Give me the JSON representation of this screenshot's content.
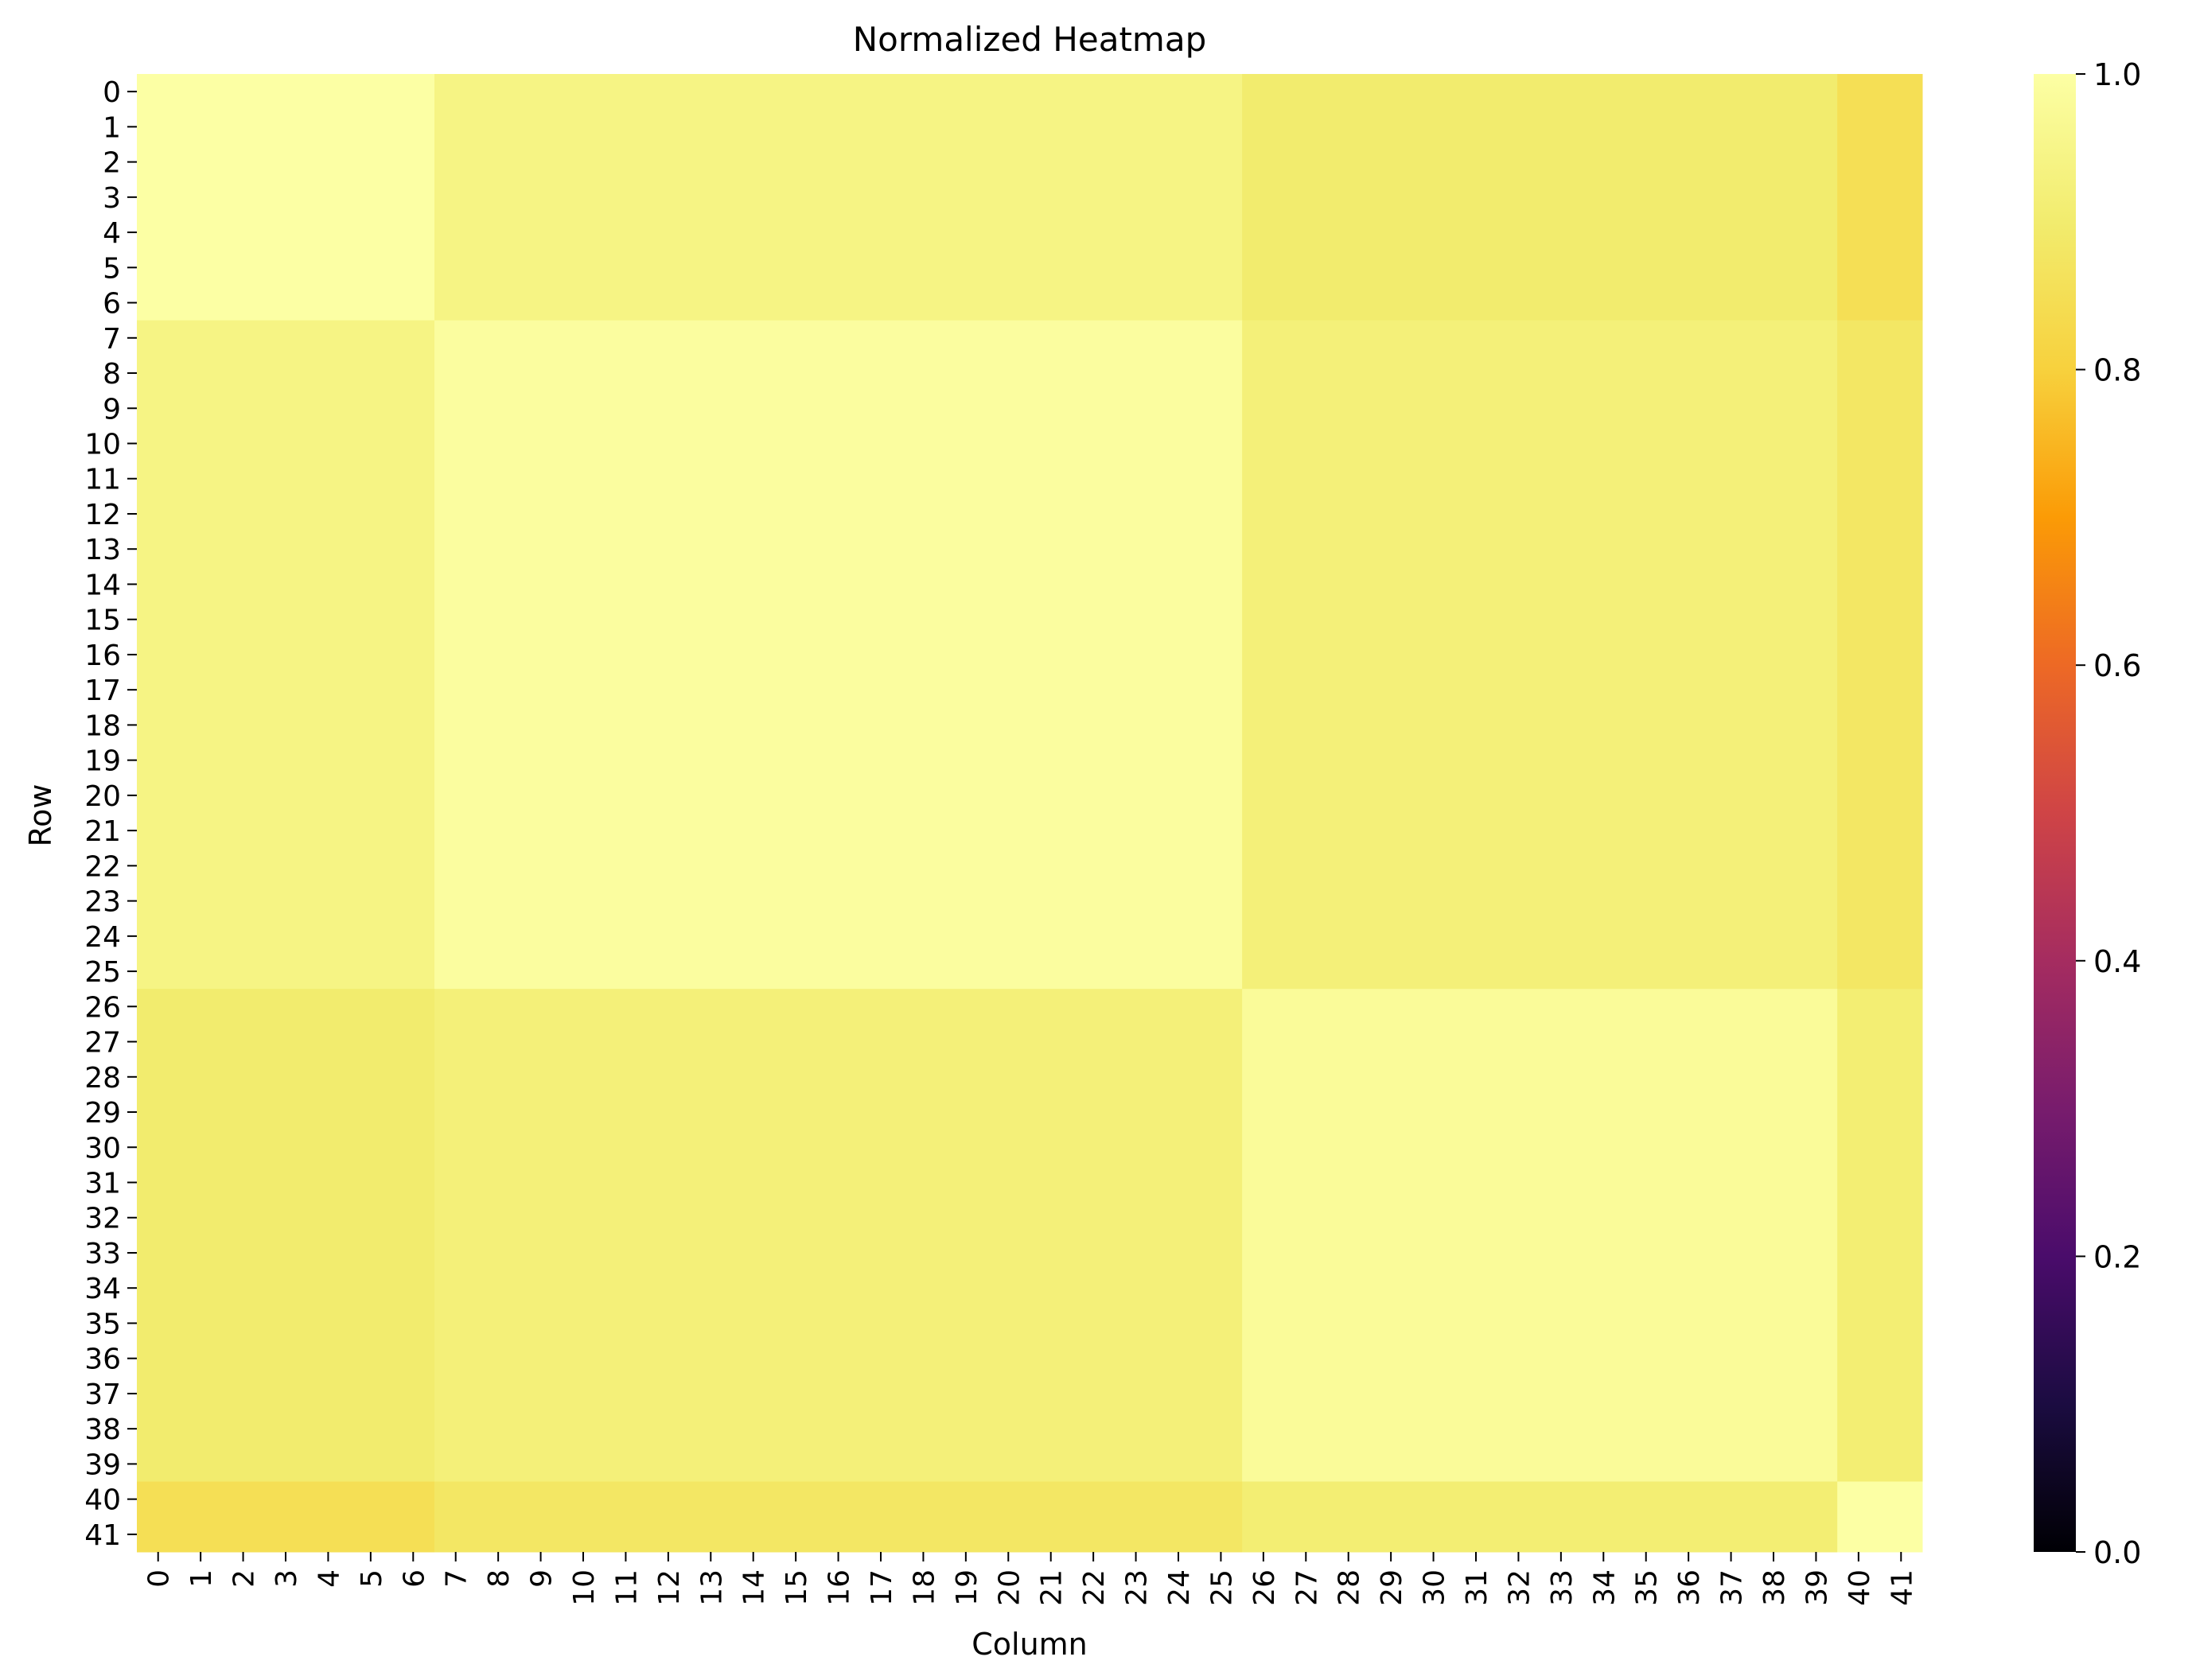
{
  "chart_data": {
    "type": "heatmap",
    "title": "Normalized Heatmap",
    "xlabel": "Column",
    "ylabel": "Row",
    "x_ticks": [
      "0",
      "1",
      "2",
      "3",
      "4",
      "5",
      "6",
      "7",
      "8",
      "9",
      "10",
      "11",
      "12",
      "13",
      "14",
      "15",
      "16",
      "17",
      "18",
      "19",
      "20",
      "21",
      "22",
      "23",
      "24",
      "25",
      "26",
      "27",
      "28",
      "29",
      "30",
      "31",
      "32",
      "33",
      "34",
      "35",
      "36",
      "37",
      "38",
      "39",
      "40",
      "41"
    ],
    "y_ticks": [
      "0",
      "1",
      "2",
      "3",
      "4",
      "5",
      "6",
      "7",
      "8",
      "9",
      "10",
      "11",
      "12",
      "13",
      "14",
      "15",
      "16",
      "17",
      "18",
      "19",
      "20",
      "21",
      "22",
      "23",
      "24",
      "25",
      "26",
      "27",
      "28",
      "29",
      "30",
      "31",
      "32",
      "33",
      "34",
      "35",
      "36",
      "37",
      "38",
      "39",
      "40",
      "41"
    ],
    "colormap": "inferno",
    "colorbar": {
      "range": [
        0.0,
        1.0
      ],
      "ticks": [
        "0.0",
        "0.2",
        "0.4",
        "0.6",
        "0.8",
        "1.0"
      ]
    },
    "blocks": [
      {
        "rows": [
          0,
          6
        ],
        "cols": [
          0,
          6
        ],
        "value": 1.0
      },
      {
        "rows": [
          0,
          6
        ],
        "cols": [
          7,
          25
        ],
        "value": 0.94
      },
      {
        "rows": [
          0,
          6
        ],
        "cols": [
          26,
          39
        ],
        "value": 0.9
      },
      {
        "rows": [
          0,
          6
        ],
        "cols": [
          40,
          41
        ],
        "value": 0.85
      },
      {
        "rows": [
          7,
          25
        ],
        "cols": [
          0,
          6
        ],
        "value": 0.94
      },
      {
        "rows": [
          7,
          25
        ],
        "cols": [
          7,
          25
        ],
        "value": 0.99
      },
      {
        "rows": [
          7,
          25
        ],
        "cols": [
          26,
          39
        ],
        "value": 0.92
      },
      {
        "rows": [
          7,
          25
        ],
        "cols": [
          40,
          41
        ],
        "value": 0.88
      },
      {
        "rows": [
          26,
          39
        ],
        "cols": [
          0,
          6
        ],
        "value": 0.9
      },
      {
        "rows": [
          26,
          39
        ],
        "cols": [
          7,
          25
        ],
        "value": 0.92
      },
      {
        "rows": [
          26,
          39
        ],
        "cols": [
          26,
          39
        ],
        "value": 0.98
      },
      {
        "rows": [
          26,
          39
        ],
        "cols": [
          40,
          41
        ],
        "value": 0.91
      },
      {
        "rows": [
          40,
          41
        ],
        "cols": [
          0,
          6
        ],
        "value": 0.85
      },
      {
        "rows": [
          40,
          41
        ],
        "cols": [
          7,
          25
        ],
        "value": 0.88
      },
      {
        "rows": [
          40,
          41
        ],
        "cols": [
          26,
          39
        ],
        "value": 0.91
      },
      {
        "rows": [
          40,
          41
        ],
        "cols": [
          40,
          41
        ],
        "value": 1.0
      }
    ]
  }
}
